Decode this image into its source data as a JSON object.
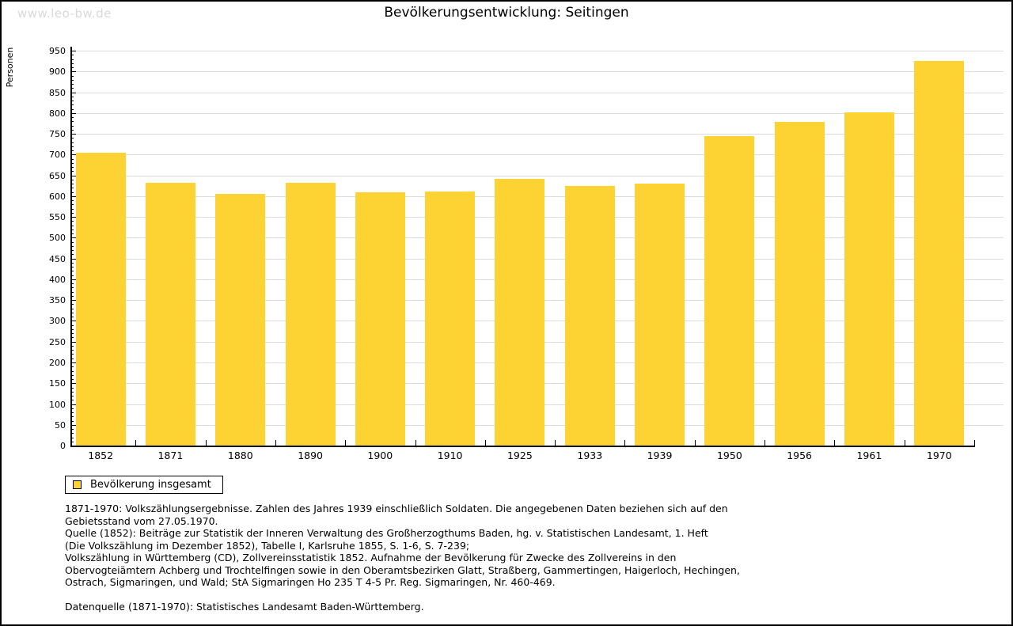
{
  "page": {
    "watermark": "www.leo-bw.de"
  },
  "chart_data": {
    "type": "bar",
    "title": "Bevölkerungsentwicklung: Seitingen",
    "xlabel": "",
    "ylabel": "Personen",
    "categories": [
      "1852",
      "1871",
      "1880",
      "1890",
      "1900",
      "1910",
      "1925",
      "1933",
      "1939",
      "1950",
      "1956",
      "1961",
      "1970"
    ],
    "values": [
      704,
      632,
      605,
      632,
      609,
      611,
      641,
      624,
      631,
      744,
      778,
      801,
      925
    ],
    "ylim": [
      0,
      950
    ],
    "y_tick_step": 50,
    "y_minor_tick_step": 10,
    "grid": "horizontal",
    "legend_position": "bottom-left",
    "colors": {
      "bar": "#FCD332",
      "gridline": "#DCDCDC",
      "axis": "#000000",
      "watermark": "#D9D9D9"
    },
    "legend": [
      {
        "label": "Bevölkerung insgesamt",
        "color": "#FCD332"
      }
    ]
  },
  "footnotes": {
    "lines": [
      "1871-1970: Volkszählungsergebnisse. Zahlen des Jahres 1939 einschließlich Soldaten. Die angegebenen Daten beziehen sich auf den",
      "Gebietsstand vom 27.05.1970.",
      "Quelle (1852): Beiträge zur Statistik der Inneren Verwaltung des Großherzogthums Baden, hg. v. Statistischen Landesamt, 1. Heft",
      "(Die Volkszählung im Dezember 1852), Tabelle I, Karlsruhe 1855, S. 1-6, S. 7-239;",
      "Volkszählung in Württemberg (CD), Zollvereinsstatistik 1852. Aufnahme der Bevölkerung für Zwecke des Zollvereins in den",
      "Obervogteiämtern Achberg und Trochtelfingen sowie in den Oberamtsbezirken Glatt, Straßberg, Gammertingen, Haigerloch, Hechingen,",
      "Ostrach, Sigmaringen, und Wald; StA Sigmaringen Ho 235 T 4-5 Pr. Reg. Sigmaringen, Nr. 460-469."
    ],
    "source": "Datenquelle (1871-1970): Statistisches Landesamt Baden-Württemberg."
  }
}
